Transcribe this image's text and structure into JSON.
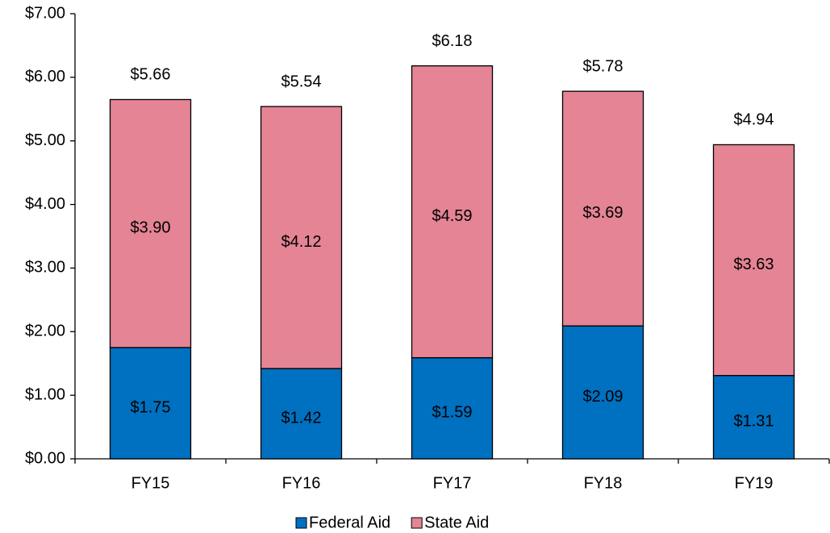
{
  "chart_data": {
    "type": "stacked_bar",
    "categories": [
      "FY15",
      "FY16",
      "FY17",
      "FY18",
      "FY19"
    ],
    "series": [
      {
        "name": "Federal Aid",
        "color": "#0070c0",
        "values": [
          1.75,
          1.42,
          1.59,
          2.09,
          1.31
        ],
        "value_labels": [
          "$1.75",
          "$1.42",
          "$1.59",
          "$2.09",
          "$1.31"
        ]
      },
      {
        "name": "State Aid",
        "color": "#e48494",
        "values": [
          3.9,
          4.12,
          4.59,
          3.69,
          3.63
        ],
        "value_labels": [
          "$3.90",
          "$4.12",
          "$4.59",
          "$3.69",
          "$3.63"
        ]
      }
    ],
    "totals": [
      5.66,
      5.54,
      6.18,
      5.78,
      4.94
    ],
    "total_labels": [
      "$5.66",
      "$5.54",
      "$6.18",
      "$5.78",
      "$4.94"
    ],
    "ylim": [
      0,
      7
    ],
    "yticks": [
      {
        "value": 0,
        "label": "$0.00"
      },
      {
        "value": 1,
        "label": "$1.00"
      },
      {
        "value": 2,
        "label": "$2.00"
      },
      {
        "value": 3,
        "label": "$3.00"
      },
      {
        "value": 4,
        "label": "$4.00"
      },
      {
        "value": 5,
        "label": "$5.00"
      },
      {
        "value": 6,
        "label": "$6.00"
      },
      {
        "value": 7,
        "label": "$7.00"
      }
    ],
    "grid": false,
    "legend": "bottom"
  }
}
